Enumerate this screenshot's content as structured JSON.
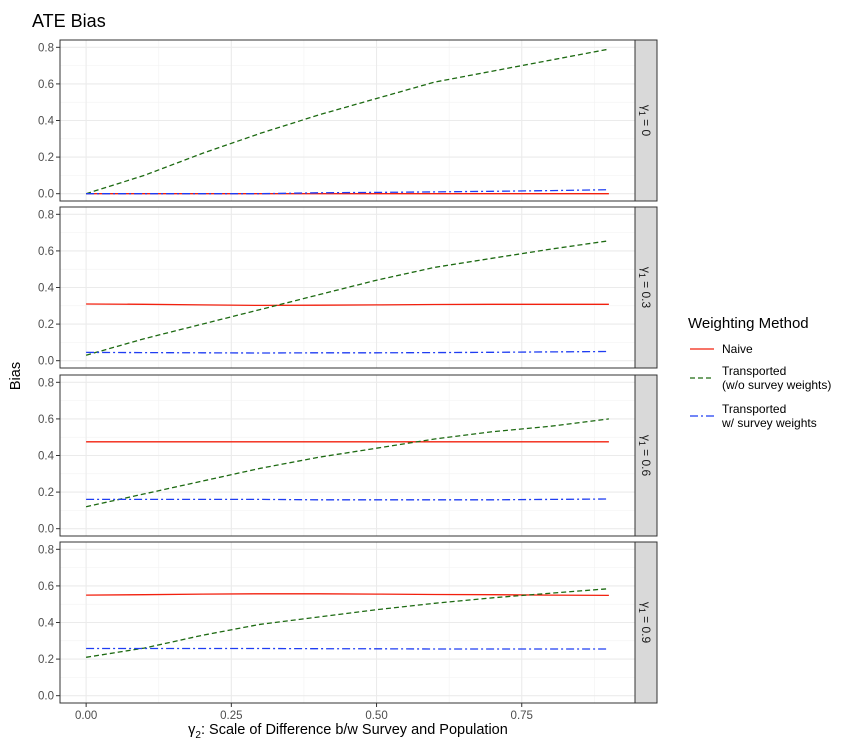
{
  "chart_data": {
    "type": "line",
    "title": "ATE Bias",
    "xlabel_symbol": "γ",
    "xlabel_sub": "2",
    "xlabel_rest": ": Scale of Difference b/w Survey and Population",
    "ylabel": "Bias",
    "xlim": [
      0,
      0.9
    ],
    "ylim": [
      0,
      0.8
    ],
    "x_ticks": [
      0,
      0.25,
      0.5,
      0.75
    ],
    "x_tick_labels": [
      "0.00",
      "0.25",
      "0.50",
      "0.75"
    ],
    "y_ticks": [
      0,
      0.2,
      0.4,
      0.6,
      0.8
    ],
    "y_tick_labels": [
      "0.0",
      "0.2",
      "0.4",
      "0.6",
      "0.8"
    ],
    "grid": true,
    "legend": {
      "title": "Weighting Method",
      "placement": "right",
      "entries": [
        {
          "key": "naive",
          "lines": [
            "Naive"
          ]
        },
        {
          "key": "transported_wo",
          "lines": [
            "Transported",
            "(w/o survey weights)"
          ]
        },
        {
          "key": "transported_w",
          "lines": [
            "Transported",
            "w/ survey weights"
          ]
        }
      ]
    },
    "series_styles": {
      "naive": {
        "color": "#f2200e",
        "dash": "none"
      },
      "transported_wo": {
        "color": "#1d6a12",
        "dash": "5,3"
      },
      "transported_w": {
        "color": "#1f3df2",
        "dash": "8,3,2,3"
      }
    },
    "x": [
      0.0,
      0.1,
      0.2,
      0.3,
      0.4,
      0.5,
      0.6,
      0.7,
      0.8,
      0.9
    ],
    "panels": [
      {
        "strip_symbol": "γ",
        "strip_sub": "1",
        "strip_value": " = 0",
        "series": {
          "naive": [
            0.0,
            0.0,
            0.0,
            0.0,
            0.0,
            0.0,
            0.0,
            0.0,
            0.0,
            0.0
          ],
          "transported_wo": [
            0.0,
            0.1,
            0.22,
            0.33,
            0.43,
            0.52,
            0.61,
            0.67,
            0.73,
            0.79
          ],
          "transported_w": [
            0.0,
            0.0,
            0.0,
            0.0,
            0.005,
            0.007,
            0.01,
            0.013,
            0.017,
            0.022
          ]
        }
      },
      {
        "strip_symbol": "γ",
        "strip_sub": "1",
        "strip_value": " = 0.3",
        "series": {
          "naive": [
            0.31,
            0.308,
            0.305,
            0.302,
            0.303,
            0.305,
            0.307,
            0.308,
            0.308,
            0.308
          ],
          "transported_wo": [
            0.03,
            0.12,
            0.2,
            0.28,
            0.36,
            0.44,
            0.51,
            0.56,
            0.61,
            0.655
          ],
          "transported_w": [
            0.045,
            0.044,
            0.043,
            0.042,
            0.043,
            0.043,
            0.044,
            0.046,
            0.048,
            0.05
          ]
        }
      },
      {
        "strip_symbol": "γ",
        "strip_sub": "1",
        "strip_value": " = 0.6",
        "series": {
          "naive": [
            0.475,
            0.475,
            0.475,
            0.475,
            0.475,
            0.475,
            0.475,
            0.475,
            0.475,
            0.475
          ],
          "transported_wo": [
            0.12,
            0.19,
            0.26,
            0.33,
            0.39,
            0.44,
            0.49,
            0.53,
            0.56,
            0.6
          ],
          "transported_w": [
            0.16,
            0.16,
            0.16,
            0.16,
            0.158,
            0.158,
            0.158,
            0.158,
            0.16,
            0.162
          ]
        }
      },
      {
        "strip_symbol": "γ",
        "strip_sub": "1",
        "strip_value": " = 0.9",
        "series": {
          "naive": [
            0.55,
            0.552,
            0.555,
            0.557,
            0.557,
            0.555,
            0.553,
            0.552,
            0.55,
            0.548
          ],
          "transported_wo": [
            0.21,
            0.26,
            0.33,
            0.39,
            0.43,
            0.47,
            0.505,
            0.535,
            0.56,
            0.585
          ],
          "transported_w": [
            0.258,
            0.258,
            0.258,
            0.258,
            0.257,
            0.256,
            0.255,
            0.255,
            0.255,
            0.255
          ]
        }
      }
    ]
  }
}
